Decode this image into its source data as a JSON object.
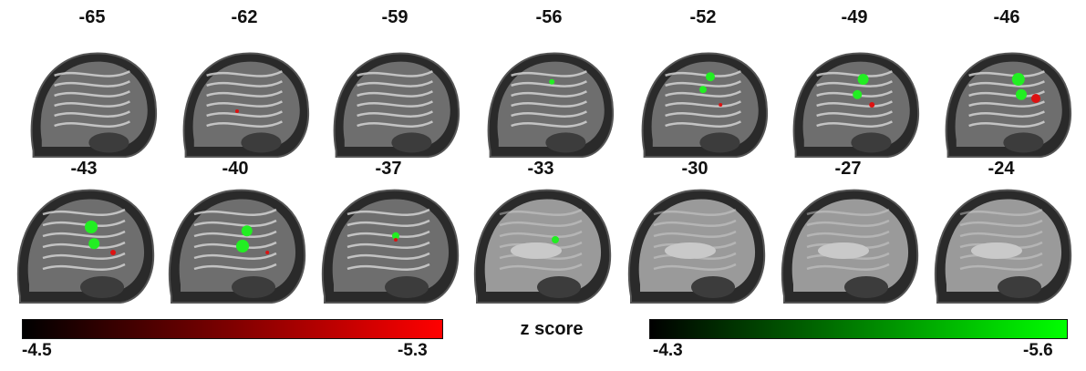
{
  "slices": {
    "row1": [
      "-65",
      "-62",
      "-59",
      "-56",
      "-52",
      "-49",
      "-46"
    ],
    "row2": [
      "-43",
      "-40",
      "-37",
      "-33",
      "-30",
      "-27",
      "-24"
    ]
  },
  "colorbars": {
    "title": "z score",
    "red": {
      "min_label": "-4.5",
      "max_label": "-5.3",
      "start_color": "#000000",
      "end_color": "#ff0000"
    },
    "green": {
      "min_label": "-4.3",
      "max_label": "-5.6",
      "start_color": "#000000",
      "end_color": "#00ff00"
    }
  }
}
